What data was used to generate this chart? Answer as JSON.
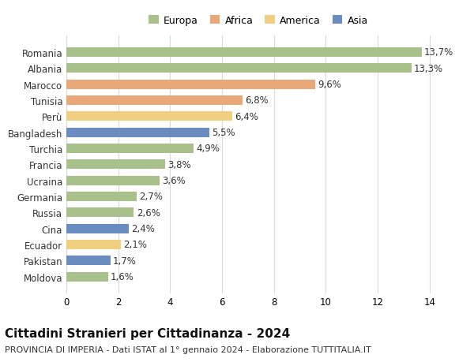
{
  "categories": [
    "Moldova",
    "Pakistan",
    "Ecuador",
    "Cina",
    "Russia",
    "Germania",
    "Ucraina",
    "Francia",
    "Turchia",
    "Bangladesh",
    "Perù",
    "Tunisia",
    "Marocco",
    "Albania",
    "Romania"
  ],
  "values": [
    1.6,
    1.7,
    2.1,
    2.4,
    2.6,
    2.7,
    3.6,
    3.8,
    4.9,
    5.5,
    6.4,
    6.8,
    9.6,
    13.3,
    13.7
  ],
  "labels": [
    "1,6%",
    "1,7%",
    "2,1%",
    "2,4%",
    "2,6%",
    "2,7%",
    "3,6%",
    "3,8%",
    "4,9%",
    "5,5%",
    "6,4%",
    "6,8%",
    "9,6%",
    "13,3%",
    "13,7%"
  ],
  "colors": [
    "#a8c08a",
    "#6b8cbf",
    "#f0d080",
    "#6b8cbf",
    "#a8c08a",
    "#a8c08a",
    "#a8c08a",
    "#a8c08a",
    "#a8c08a",
    "#6b8cbf",
    "#f0d080",
    "#e8a878",
    "#e8a878",
    "#a8c08a",
    "#a8c08a"
  ],
  "legend_labels": [
    "Europa",
    "Africa",
    "America",
    "Asia"
  ],
  "legend_colors": [
    "#a8c08a",
    "#e8a878",
    "#f0d080",
    "#6b8cbf"
  ],
  "title": "Cittadini Stranieri per Cittadinanza - 2024",
  "subtitle": "PROVINCIA DI IMPERIA - Dati ISTAT al 1° gennaio 2024 - Elaborazione TUTTITALIA.IT",
  "xlim": [
    0,
    14.8
  ],
  "xticks": [
    0,
    2,
    4,
    6,
    8,
    10,
    12,
    14
  ],
  "background_color": "#ffffff",
  "grid_color": "#d8d8d8",
  "bar_height": 0.6,
  "title_fontsize": 11,
  "subtitle_fontsize": 8,
  "label_fontsize": 8.5,
  "tick_fontsize": 8.5,
  "legend_fontsize": 9
}
